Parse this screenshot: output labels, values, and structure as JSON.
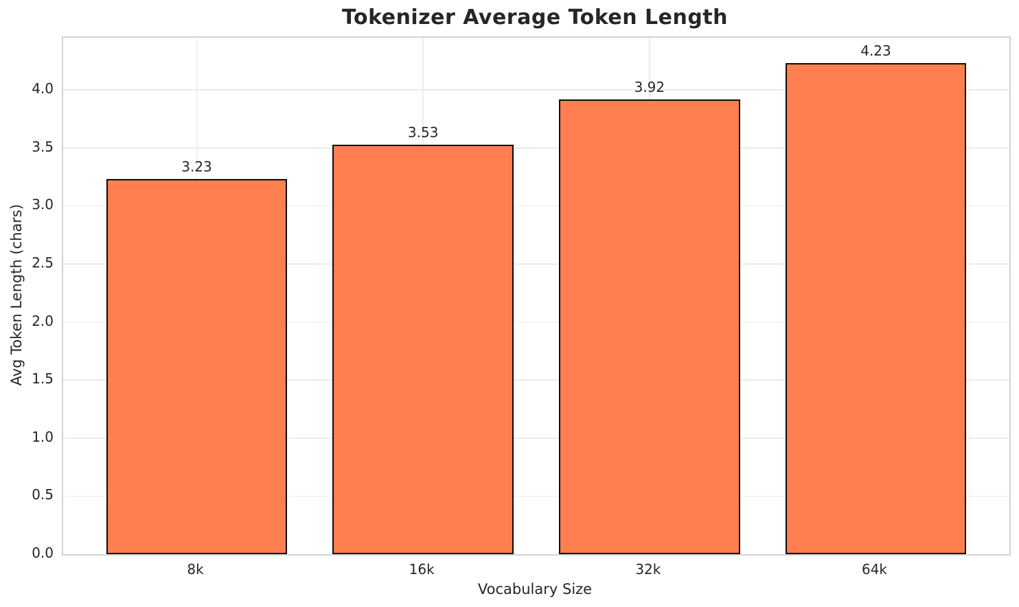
{
  "chart_data": {
    "type": "bar",
    "title": "Tokenizer Average Token Length",
    "xlabel": "Vocabulary Size",
    "ylabel": "Avg Token Length (chars)",
    "categories": [
      "8k",
      "16k",
      "32k",
      "64k"
    ],
    "values": [
      3.23,
      3.53,
      3.92,
      4.23
    ],
    "value_labels": [
      "3.23",
      "3.53",
      "3.92",
      "4.23"
    ],
    "ytick_labels": [
      "0.0",
      "0.5",
      "1.0",
      "1.5",
      "2.0",
      "2.5",
      "3.0",
      "3.5",
      "4.0"
    ],
    "yticks": [
      0.0,
      0.5,
      1.0,
      1.5,
      2.0,
      2.5,
      3.0,
      3.5,
      4.0
    ],
    "ylim": [
      0,
      4.45
    ],
    "grid": true,
    "legend_position": "none",
    "colors": {
      "bar_fill": "#FF7F50",
      "bar_edge": "#0a0a0a",
      "text": "#262626",
      "grid": "#ebebeb",
      "spine": "#d4d4d4",
      "background": "#ffffff"
    }
  }
}
